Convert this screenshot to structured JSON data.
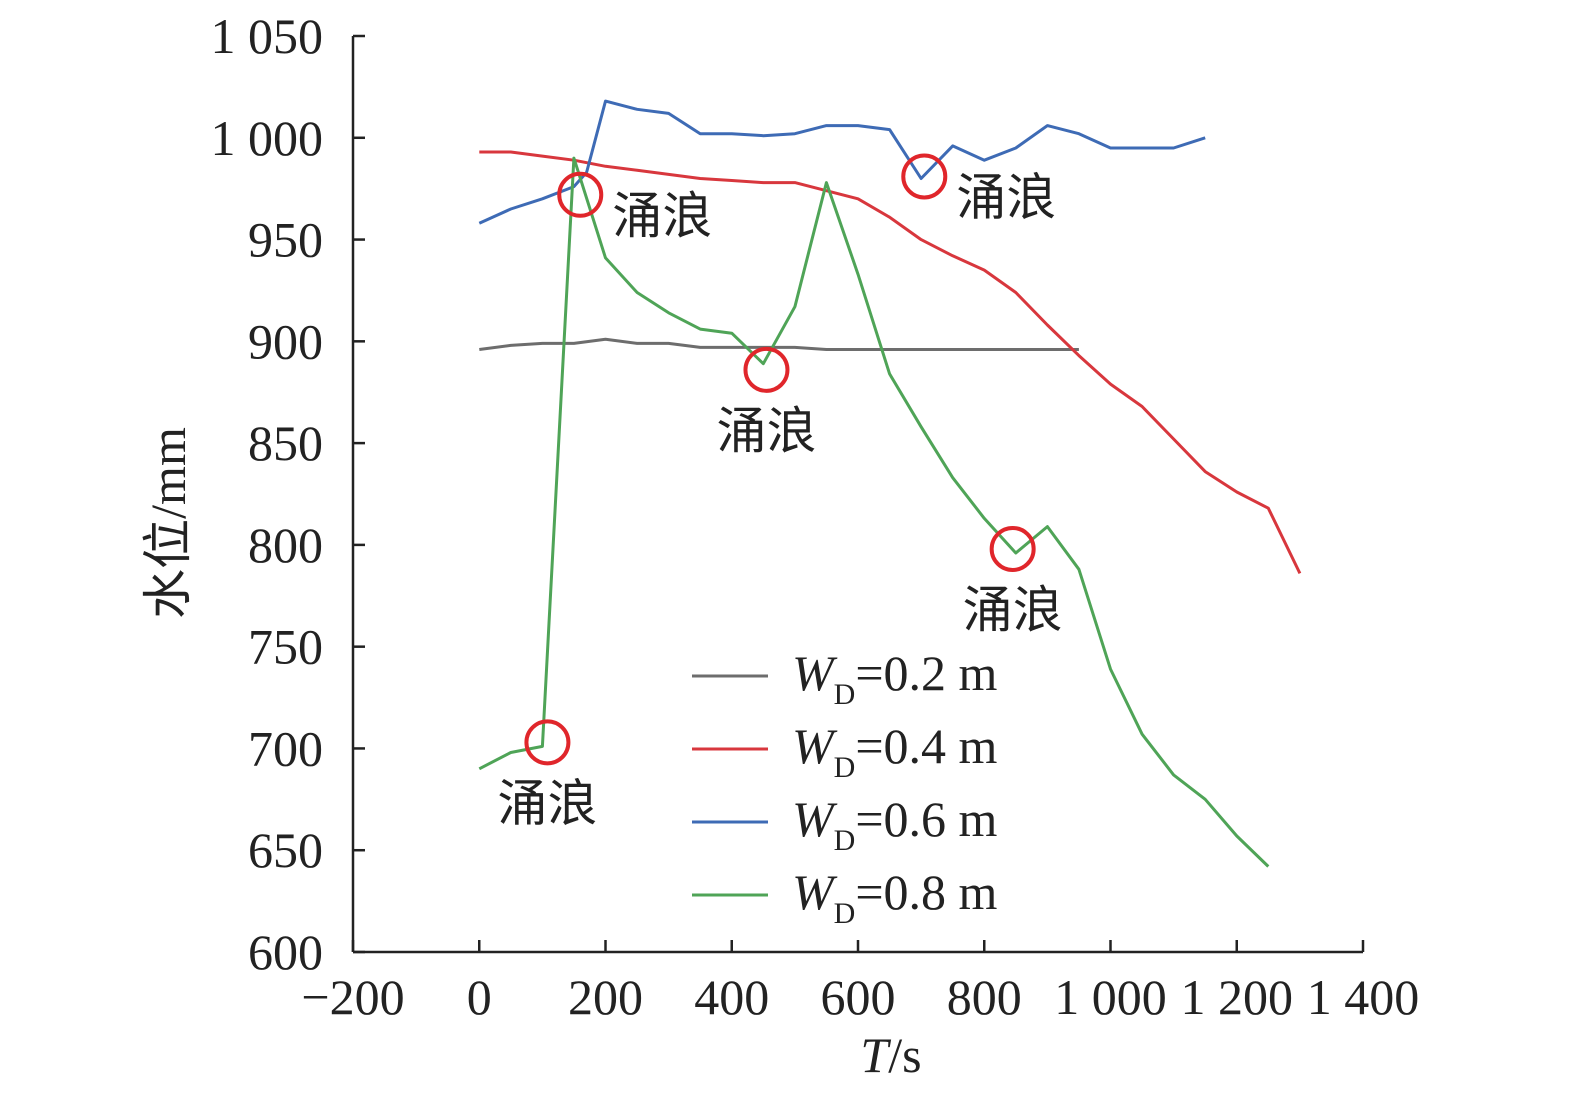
{
  "chart_data": {
    "type": "line",
    "title": "",
    "xlabel": {
      "var": "T",
      "unit": "/s"
    },
    "ylabel": "水位/mm",
    "xlim": [
      -200,
      1400
    ],
    "ylim": [
      600,
      1050
    ],
    "x_ticks": [
      -200,
      0,
      200,
      400,
      600,
      800,
      1000,
      1200,
      1400
    ],
    "x_tick_labels": [
      "−200",
      "0",
      "200",
      "400",
      "600",
      "800",
      "1 000",
      "1 200",
      "1 400"
    ],
    "y_ticks": [
      600,
      650,
      700,
      750,
      800,
      850,
      900,
      950,
      1000,
      1050
    ],
    "y_tick_labels": [
      "600",
      "650",
      "700",
      "750",
      "800",
      "850",
      "900",
      "950",
      "1 000",
      "1 050"
    ],
    "grid": false,
    "legend_position": "bottom-right",
    "series": [
      {
        "name": "W_D=0.2 m",
        "legend": {
          "var": "W",
          "sub": "D",
          "rest": "=0.2 m"
        },
        "color": "#6d6d6d",
        "x": [
          0,
          50,
          100,
          150,
          200,
          250,
          300,
          350,
          400,
          450,
          500,
          550,
          600,
          650,
          700,
          750,
          800,
          850,
          900,
          950
        ],
        "y": [
          896,
          898,
          899,
          899,
          901,
          899,
          899,
          897,
          897,
          897,
          897,
          896,
          896,
          896,
          896,
          896,
          896,
          896,
          896,
          896
        ]
      },
      {
        "name": "W_D=0.4 m",
        "legend": {
          "var": "W",
          "sub": "D",
          "rest": "=0.4 m"
        },
        "color": "#d8373d",
        "x": [
          0,
          50,
          100,
          150,
          200,
          250,
          300,
          350,
          400,
          450,
          500,
          550,
          600,
          650,
          700,
          750,
          800,
          850,
          900,
          950,
          1000,
          1050,
          1100,
          1150,
          1200,
          1250,
          1300
        ],
        "y": [
          993,
          993,
          991,
          989,
          986,
          984,
          982,
          980,
          979,
          978,
          978,
          974,
          970,
          961,
          950,
          942,
          935,
          924,
          908,
          893,
          879,
          868,
          852,
          836,
          826,
          818,
          786
        ]
      },
      {
        "name": "W_D=0.6 m",
        "legend": {
          "var": "W",
          "sub": "D",
          "rest": "=0.6 m"
        },
        "color": "#3e6bb5",
        "x": [
          0,
          50,
          100,
          150,
          170,
          200,
          250,
          300,
          350,
          400,
          450,
          500,
          550,
          600,
          650,
          700,
          750,
          800,
          850,
          900,
          950,
          1000,
          1050,
          1100,
          1150
        ],
        "y": [
          958,
          965,
          970,
          976,
          983,
          1018,
          1014,
          1012,
          1002,
          1002,
          1001,
          1002,
          1006,
          1006,
          1004,
          980,
          996,
          989,
          995,
          1006,
          1002,
          995,
          995,
          995,
          1000
        ]
      },
      {
        "name": "W_D=0.8 m",
        "legend": {
          "var": "W",
          "sub": "D",
          "rest": "=0.8 m"
        },
        "color": "#4fa457",
        "x": [
          0,
          50,
          100,
          150,
          200,
          250,
          300,
          350,
          400,
          450,
          500,
          550,
          600,
          650,
          700,
          750,
          800,
          850,
          900,
          950,
          1000,
          1050,
          1100,
          1150,
          1200,
          1250
        ],
        "y": [
          690,
          698,
          701,
          990,
          941,
          924,
          914,
          906,
          904,
          889,
          917,
          978,
          933,
          884,
          858,
          833,
          813,
          796,
          809,
          788,
          739,
          707,
          687,
          675,
          657,
          642
        ]
      }
    ],
    "annotations": [
      {
        "text": "涌浪",
        "x": 160,
        "y": 972,
        "label_pos": "right"
      },
      {
        "text": "涌浪",
        "x": 705,
        "y": 981,
        "label_pos": "right"
      },
      {
        "text": "涌浪",
        "x": 455,
        "y": 886,
        "label_pos": "below"
      },
      {
        "text": "涌浪",
        "x": 845,
        "y": 798,
        "label_pos": "below"
      },
      {
        "text": "涌浪",
        "x": 108,
        "y": 703,
        "label_pos": "below"
      }
    ],
    "annotation_marker_color": "#e0262b"
  }
}
